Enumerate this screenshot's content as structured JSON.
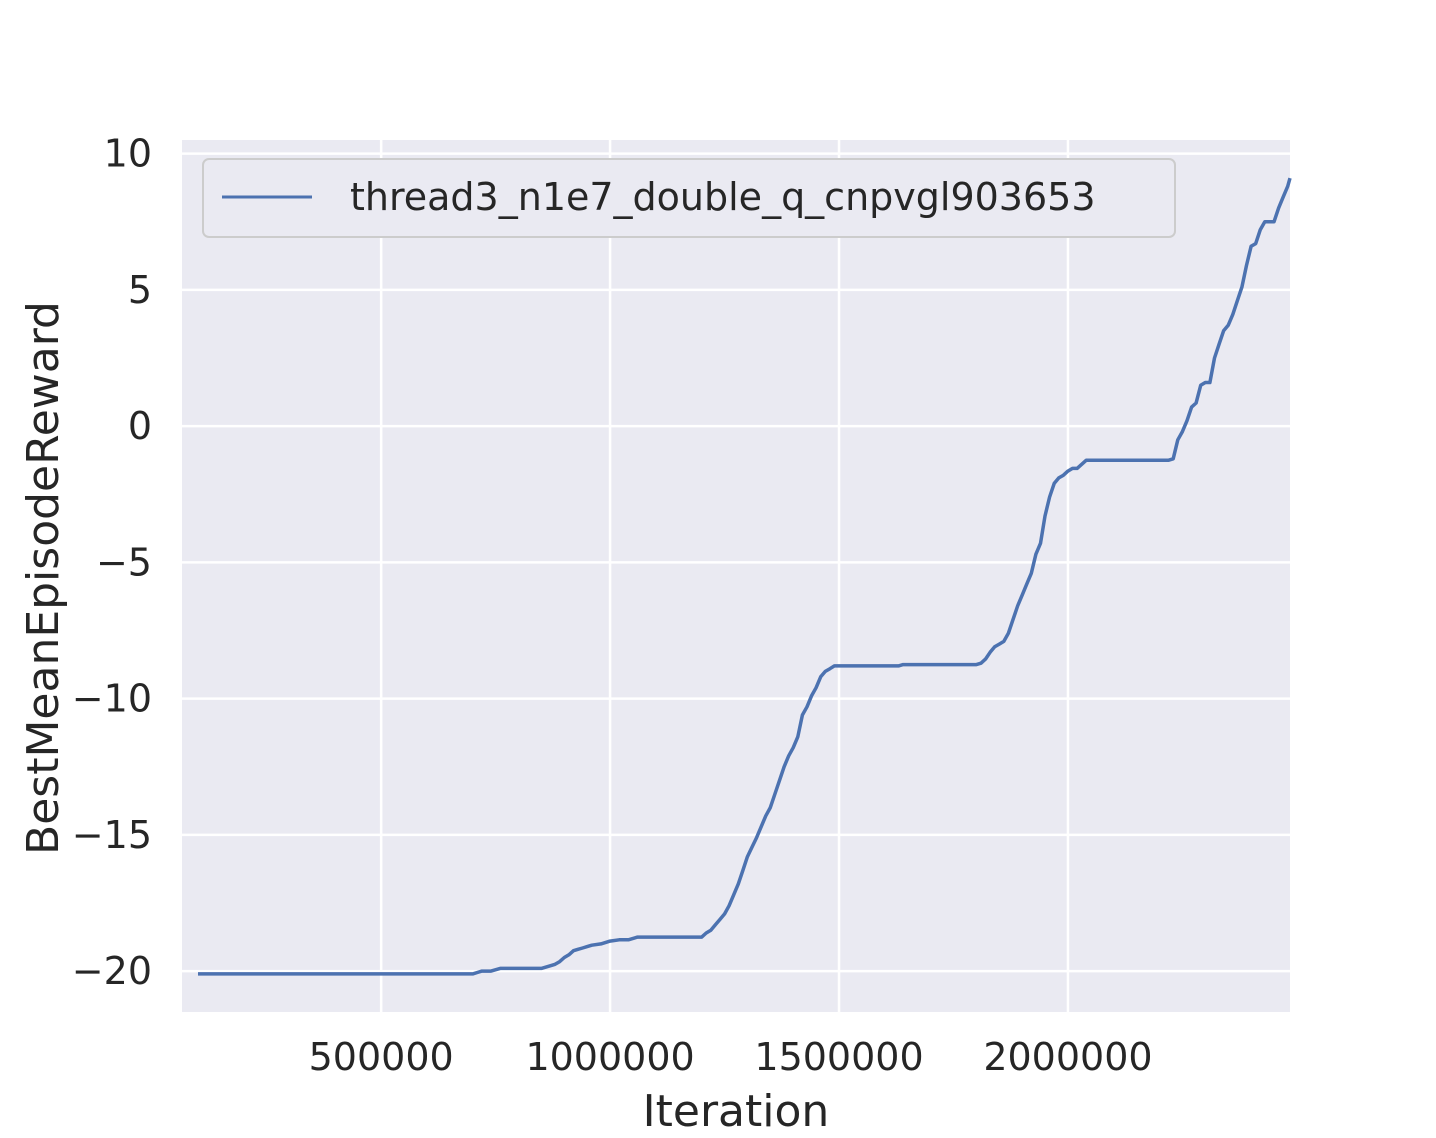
{
  "chart_data": {
    "type": "line",
    "title": "",
    "xlabel": "Iteration",
    "ylabel": "BestMeanEpisodeReward",
    "xlim": [
      65000,
      2485000
    ],
    "ylim": [
      -21.5,
      10.5
    ],
    "xticks": [
      500000,
      1000000,
      1500000,
      2000000
    ],
    "xtick_labels": [
      "500000",
      "1000000",
      "1500000",
      "2000000"
    ],
    "yticks": [
      10,
      5,
      0,
      -5,
      -10,
      -15,
      -20
    ],
    "ytick_labels": [
      "10",
      "5",
      "0",
      "−5",
      "−10",
      "−15",
      "−20"
    ],
    "grid": true,
    "legend": {
      "position": "upper-left"
    },
    "colors": {
      "background": "#eaeaf2",
      "grid": "#ffffff",
      "series": "#4c72b0",
      "text": "#262626"
    },
    "series": [
      {
        "name": "thread3_n1e7_double_q_cnpvgl903653",
        "x": [
          100000,
          200000,
          300000,
          400000,
          500000,
          600000,
          700000,
          710000,
          720000,
          740000,
          760000,
          800000,
          850000,
          870000,
          880000,
          890000,
          900000,
          910000,
          920000,
          930000,
          940000,
          950000,
          960000,
          980000,
          1000000,
          1020000,
          1040000,
          1060000,
          1080000,
          1100000,
          1140000,
          1180000,
          1200000,
          1210000,
          1220000,
          1230000,
          1240000,
          1250000,
          1260000,
          1270000,
          1280000,
          1290000,
          1300000,
          1310000,
          1320000,
          1330000,
          1340000,
          1350000,
          1360000,
          1370000,
          1380000,
          1390000,
          1400000,
          1410000,
          1420000,
          1430000,
          1440000,
          1450000,
          1460000,
          1470000,
          1480000,
          1490000,
          1500000,
          1510000,
          1520000,
          1560000,
          1600000,
          1630000,
          1640000,
          1700000,
          1750000,
          1790000,
          1800000,
          1810000,
          1820000,
          1830000,
          1840000,
          1850000,
          1860000,
          1870000,
          1880000,
          1890000,
          1900000,
          1910000,
          1920000,
          1930000,
          1940000,
          1950000,
          1960000,
          1970000,
          1980000,
          1990000,
          2000000,
          2010000,
          2020000,
          2030000,
          2040000,
          2100000,
          2150000,
          2200000,
          2220000,
          2230000,
          2240000,
          2250000,
          2260000,
          2270000,
          2280000,
          2290000,
          2300000,
          2310000,
          2320000,
          2330000,
          2340000,
          2350000,
          2360000,
          2370000,
          2380000,
          2390000,
          2400000,
          2410000,
          2420000,
          2430000,
          2440000,
          2450000,
          2460000,
          2470000,
          2480000,
          2485000
        ],
        "y": [
          -20.1,
          -20.1,
          -20.1,
          -20.1,
          -20.1,
          -20.1,
          -20.1,
          -20.05,
          -20.0,
          -20.0,
          -19.9,
          -19.9,
          -19.9,
          -19.8,
          -19.75,
          -19.65,
          -19.5,
          -19.4,
          -19.25,
          -19.2,
          -19.15,
          -19.1,
          -19.05,
          -19.0,
          -18.9,
          -18.85,
          -18.85,
          -18.75,
          -18.75,
          -18.75,
          -18.75,
          -18.75,
          -18.75,
          -18.6,
          -18.5,
          -18.3,
          -18.1,
          -17.9,
          -17.6,
          -17.2,
          -16.8,
          -16.3,
          -15.8,
          -15.45,
          -15.1,
          -14.7,
          -14.3,
          -14.0,
          -13.5,
          -13.0,
          -12.5,
          -12.1,
          -11.8,
          -11.4,
          -10.6,
          -10.3,
          -9.9,
          -9.6,
          -9.2,
          -9.0,
          -8.9,
          -8.8,
          -8.8,
          -8.8,
          -8.8,
          -8.8,
          -8.8,
          -8.8,
          -8.75,
          -8.75,
          -8.75,
          -8.75,
          -8.75,
          -8.7,
          -8.55,
          -8.3,
          -8.1,
          -8.0,
          -7.9,
          -7.6,
          -7.1,
          -6.6,
          -6.2,
          -5.8,
          -5.4,
          -4.7,
          -4.3,
          -3.3,
          -2.6,
          -2.1,
          -1.9,
          -1.8,
          -1.65,
          -1.55,
          -1.55,
          -1.4,
          -1.25,
          -1.25,
          -1.25,
          -1.25,
          -1.25,
          -1.2,
          -0.5,
          -0.2,
          0.2,
          0.7,
          0.85,
          1.5,
          1.6,
          1.6,
          2.5,
          3.0,
          3.5,
          3.7,
          4.1,
          4.6,
          5.1,
          5.9,
          6.6,
          6.7,
          7.2,
          7.5,
          7.5,
          7.5,
          8.0,
          8.4,
          8.8,
          9.1
        ]
      }
    ]
  }
}
